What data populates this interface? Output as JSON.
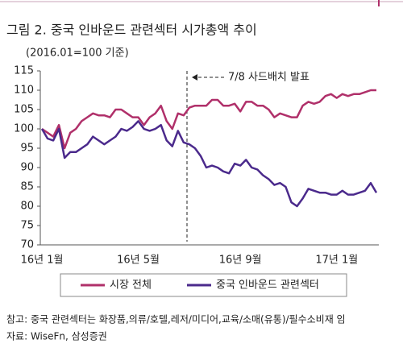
{
  "chart_data": {
    "type": "line",
    "title": "그림 2. 중국 인바운드 관련섹터 시가총액 추이",
    "subtitle": "(2016.01=100 기준)",
    "annotation": "7/8 사드배치 발표",
    "categories": [
      "16년 1월",
      null,
      null,
      null,
      null,
      null,
      null,
      null,
      null,
      null,
      null,
      null,
      null,
      null,
      null,
      null,
      null,
      "16년 5월",
      null,
      null,
      null,
      null,
      null,
      null,
      null,
      null,
      null,
      null,
      null,
      null,
      null,
      null,
      null,
      null,
      null,
      "16년 9월",
      null,
      null,
      null,
      null,
      null,
      null,
      null,
      null,
      null,
      null,
      null,
      null,
      null,
      null,
      null,
      null,
      "17년 1월",
      null,
      null,
      null,
      null,
      null,
      null,
      null
    ],
    "series": [
      {
        "name": "시장 전체",
        "color": "#b0306a",
        "values": [
          100,
          99,
          98,
          101,
          95,
          99,
          100,
          102,
          103,
          104,
          103.5,
          103.5,
          103,
          105,
          105,
          104,
          103,
          103,
          101,
          103,
          104,
          106,
          102,
          100,
          104,
          103.5,
          105.5,
          106,
          106,
          106,
          107.5,
          107.5,
          106,
          106,
          106.5,
          104.5,
          107,
          107,
          106,
          106,
          105,
          103,
          104,
          103.5,
          103,
          103,
          106,
          107,
          106.5,
          107,
          108.5,
          109,
          108,
          109,
          108.5,
          109,
          109,
          109.5,
          110,
          110
        ]
      },
      {
        "name": "중국 인바운드 관련섹터",
        "color": "#4b2a8c",
        "values": [
          100,
          97.5,
          97,
          100,
          92.5,
          94,
          94,
          95,
          96,
          98,
          97,
          96,
          97,
          98,
          100,
          99.5,
          100.5,
          102,
          100,
          99.5,
          100,
          101,
          97,
          95.5,
          99.5,
          96.5,
          96,
          95,
          93,
          90,
          90.5,
          90,
          89,
          88.5,
          91,
          90.5,
          92,
          90,
          89.5,
          88,
          87,
          85.5,
          86,
          85,
          81,
          80,
          82,
          84.5,
          84,
          83.5,
          83.5,
          83,
          83,
          84,
          83,
          83,
          83.5,
          84,
          86,
          83.5
        ]
      }
    ],
    "ylim": [
      70,
      115
    ],
    "yticks": [
      70,
      75,
      80,
      85,
      90,
      95,
      100,
      105,
      110,
      115
    ],
    "grid": false,
    "note": "참고: 중국 관련섹터는 화장품,의류/호텔,레저/미디어,교육/소매(유통)/필수소비재 임",
    "source": "자료: WiseFn, 삼성증권"
  }
}
